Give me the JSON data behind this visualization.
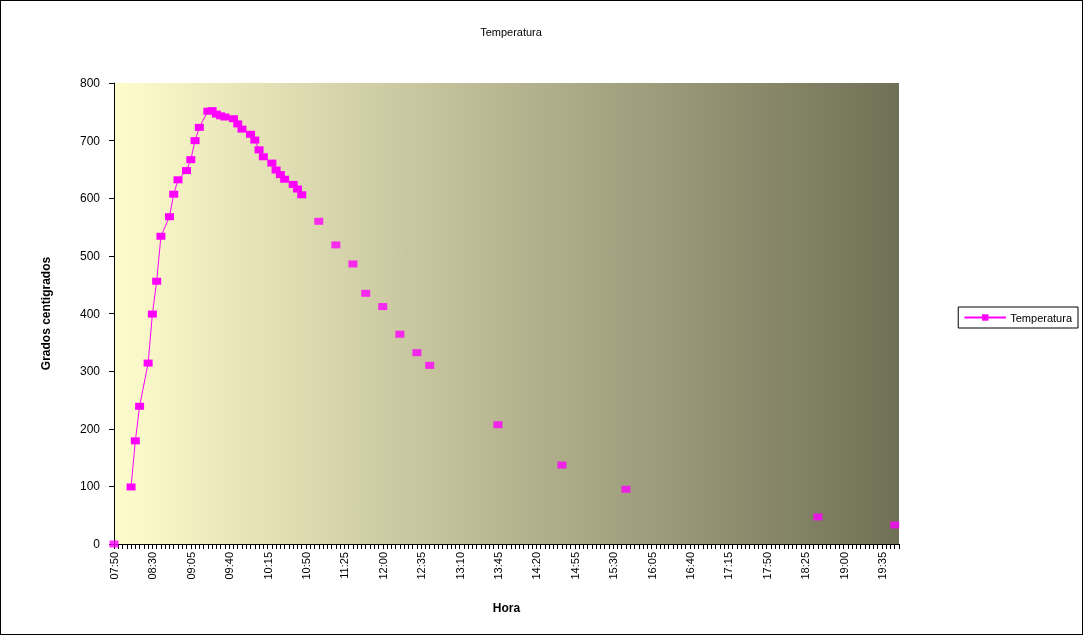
{
  "chart_data": {
    "type": "line",
    "title": "Temperatura",
    "xlabel": "Hora",
    "ylabel": "Grados centigrados",
    "categories": [
      "07:50",
      null,
      null,
      null,
      null,
      null,
      null,
      null,
      null,
      "08:30",
      null,
      null,
      null,
      null,
      null,
      null,
      null,
      null,
      "09:05",
      null,
      null,
      null,
      null,
      null,
      null,
      null,
      null,
      "09:40",
      null,
      null,
      null,
      null,
      null,
      null,
      null,
      null,
      "10:15",
      null,
      null,
      null,
      null,
      null,
      null,
      null,
      null,
      "10:50",
      null,
      null,
      null,
      null,
      null,
      null,
      null,
      null,
      "11:25",
      null,
      null,
      null,
      null,
      null,
      null,
      null,
      null,
      "12:00",
      null,
      null,
      null,
      null,
      null,
      null,
      null,
      null,
      "12:35",
      null,
      null,
      null,
      null,
      null,
      null,
      null,
      null,
      "13:10",
      null,
      null,
      null,
      null,
      null,
      null,
      null,
      null,
      "13:45",
      null,
      null,
      null,
      null,
      null,
      null,
      null,
      null,
      "14:20",
      null,
      null,
      null,
      null,
      null,
      null,
      null,
      null,
      "14:55",
      null,
      null,
      null,
      null,
      null,
      null,
      null,
      null,
      "15:30",
      null,
      null,
      null,
      null,
      null,
      null,
      null,
      null,
      "16:05",
      null,
      null,
      null,
      null,
      null,
      null,
      null,
      null,
      "16:40",
      null,
      null,
      null,
      null,
      null,
      null,
      null,
      null,
      "17:15",
      null,
      null,
      null,
      null,
      null,
      null,
      null,
      null,
      "17:50",
      null,
      null,
      null,
      null,
      null,
      null,
      null,
      null,
      "18:25",
      null,
      null,
      null,
      null,
      null,
      null,
      null,
      null,
      "19:00",
      null,
      null,
      null,
      null,
      null,
      null,
      null,
      null,
      "19:35",
      null,
      null,
      null,
      null
    ],
    "series": [
      {
        "name": "Temperatura",
        "color": "#ff00ff",
        "values": [
          null,
          null,
          null,
          null,
          99,
          179,
          239,
          null,
          314,
          399,
          456,
          534,
          null,
          568,
          607,
          632,
          null,
          648,
          667,
          700,
          723,
          null,
          751,
          752,
          746,
          743,
          741,
          null,
          738,
          729,
          720,
          null,
          711,
          701,
          684,
          672,
          null,
          661,
          649,
          641,
          633,
          null,
          624,
          616,
          606,
          null,
          null,
          null,
          null,
          null,
          null,
          null,
          null,
          null,
          null,
          null,
          null,
          null,
          null,
          null,
          null,
          null,
          null,
          null,
          null,
          null,
          null,
          null,
          null,
          null,
          null,
          null,
          null,
          null,
          null,
          null,
          null,
          null,
          null,
          null,
          null,
          null,
          null,
          null,
          null,
          null,
          null,
          null,
          null,
          null,
          null,
          null,
          null,
          null,
          null,
          null,
          null,
          null,
          null,
          null,
          null,
          null,
          null,
          null,
          null,
          null,
          null,
          null,
          null,
          null,
          null,
          null,
          null,
          null,
          null,
          null,
          null,
          null,
          null,
          null,
          null,
          null,
          null,
          null,
          null,
          null,
          null,
          null,
          null,
          null,
          null,
          null,
          null,
          null,
          null,
          null,
          null,
          null,
          null,
          null,
          null,
          null,
          null,
          null,
          null,
          null,
          null,
          null,
          null,
          null,
          null,
          null,
          null,
          null,
          null,
          null,
          null,
          null,
          null,
          null,
          null,
          null,
          null,
          null,
          null,
          null,
          null,
          null,
          null,
          null,
          null,
          null,
          null,
          null,
          null,
          null,
          null,
          null,
          null,
          null,
          null,
          null,
          null,
          null,
          null
        ]
      },
      {
        "type": "scatter",
        "color": "#ff00ff",
        "values": [
          0,
          null,
          null,
          null,
          null,
          null,
          null,
          null,
          null,
          null,
          null,
          null,
          null,
          null,
          null,
          null,
          null,
          null,
          null,
          null,
          null,
          null,
          null,
          null,
          null,
          null,
          null,
          null,
          null,
          null,
          null,
          null,
          null,
          null,
          null,
          null,
          null,
          null,
          null,
          null,
          null,
          null,
          null,
          null,
          null,
          null,
          null,
          null,
          560,
          null,
          null,
          null,
          519,
          null,
          null,
          null,
          486,
          null,
          null,
          435,
          null,
          null,
          null,
          412,
          null,
          null,
          null,
          364,
          null,
          null,
          null,
          332,
          null,
          null,
          310,
          null,
          null,
          null,
          null,
          null,
          null,
          null,
          null,
          null,
          null,
          null,
          null,
          null,
          null,
          null,
          207,
          null,
          null,
          null,
          null,
          null,
          null,
          null,
          null,
          null,
          null,
          null,
          null,
          null,
          null,
          137,
          null,
          null,
          null,
          null,
          null,
          null,
          null,
          null,
          null,
          null,
          null,
          null,
          null,
          null,
          95,
          null,
          null,
          null,
          null,
          null,
          null,
          null,
          null,
          null,
          null,
          null,
          null,
          null,
          null,
          null,
          null,
          null,
          null,
          null,
          null,
          null,
          null,
          null,
          null,
          null,
          null,
          null,
          null,
          null,
          null,
          null,
          null,
          null,
          null,
          null,
          null,
          null,
          null,
          null,
          null,
          null,
          null,
          null,
          null,
          47,
          null,
          null,
          null,
          null,
          null,
          null,
          null,
          null,
          null,
          null,
          null,
          null,
          null,
          null,
          null,
          null,
          null,
          33,
          null
        ]
      }
    ],
    "ylim": [
      0,
      800
    ],
    "yticks": [
      0,
      100,
      200,
      300,
      400,
      500,
      600,
      700,
      800
    ],
    "grid": false,
    "legend": "right",
    "marker": "square",
    "line_style": "solid"
  }
}
